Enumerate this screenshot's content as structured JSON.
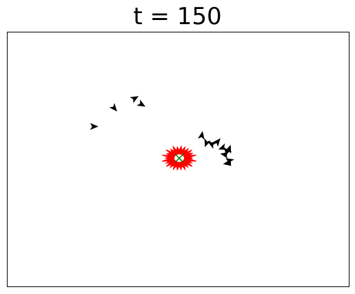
{
  "chart_data": {
    "type": "scatter",
    "title": "t = 150",
    "xlabel": "",
    "ylabel": "",
    "xlim": [
      0,
      100
    ],
    "ylim": [
      0,
      100
    ],
    "grid": false,
    "show_ticks": false,
    "colors": {
      "agents": "#000000",
      "swarm": "#ff0000",
      "target": "#008000"
    },
    "target": {
      "x": 50.3,
      "y": 50.5
    },
    "swarm": {
      "name": "",
      "center": {
        "x": 50.3,
        "y": 50.5
      },
      "radius": 5.2,
      "spikes": 26
    },
    "series": [
      {
        "name": "",
        "marker": "arrow",
        "points": [
          {
            "x": 25.2,
            "y": 63.0,
            "angle": 90
          },
          {
            "x": 31.2,
            "y": 70.3,
            "angle": 140
          },
          {
            "x": 37.2,
            "y": 74.0,
            "angle": 60
          },
          {
            "x": 39.2,
            "y": 71.7,
            "angle": 120
          },
          {
            "x": 56.9,
            "y": 59.3,
            "angle": 10
          },
          {
            "x": 58.3,
            "y": 56.6,
            "angle": 200
          },
          {
            "x": 59.9,
            "y": 56.0,
            "angle": 300
          },
          {
            "x": 61.5,
            "y": 56.9,
            "angle": 40
          },
          {
            "x": 63.1,
            "y": 54.6,
            "angle": 250
          },
          {
            "x": 64.3,
            "y": 53.2,
            "angle": 320
          },
          {
            "x": 63.7,
            "y": 51.9,
            "angle": 280
          },
          {
            "x": 65.1,
            "y": 49.5,
            "angle": 300
          },
          {
            "x": 64.5,
            "y": 48.5,
            "angle": 260
          },
          {
            "x": 64.9,
            "y": 54.0,
            "angle": 20
          }
        ]
      }
    ]
  }
}
